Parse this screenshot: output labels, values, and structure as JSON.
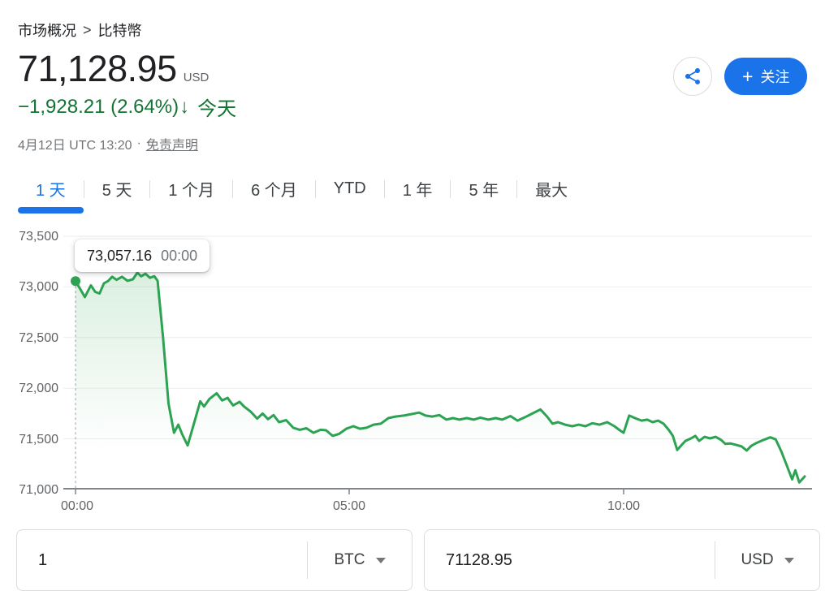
{
  "breadcrumb": {
    "root": "市场概况",
    "separator": ">",
    "current": "比特幣"
  },
  "quote": {
    "price": "71,128.95",
    "currency": "USD",
    "change": "−1,928.21 (2.64%)",
    "arrow": "↓",
    "period": "今天",
    "timestamp": "4月12日 UTC 13:20",
    "dot": "·",
    "disclaimer": "免责声明"
  },
  "actions": {
    "follow_plus": "+",
    "follow_label": "关注"
  },
  "tabs": [
    {
      "id": "1d",
      "label": "1 天",
      "active": true
    },
    {
      "id": "5d",
      "label": "5 天",
      "active": false
    },
    {
      "id": "1m",
      "label": "1 个月",
      "active": false
    },
    {
      "id": "6m",
      "label": "6 个月",
      "active": false
    },
    {
      "id": "ytd",
      "label": "YTD",
      "active": false
    },
    {
      "id": "1y",
      "label": "1 年",
      "active": false
    },
    {
      "id": "5y",
      "label": "5 年",
      "active": false
    },
    {
      "id": "max",
      "label": "最大",
      "active": false
    }
  ],
  "colors": {
    "accent": "#1a73e8",
    "change_green": "#137333",
    "chart_line": "#2ca352",
    "chart_fill": "#34a853",
    "grid": "#ecedee",
    "axis": "#80868b",
    "border": "#dadce0"
  },
  "chart_data": {
    "type": "line",
    "x_unit": "time (UTC, hours)",
    "x_ticks": [
      "00:00",
      "05:00",
      "10:00"
    ],
    "x_tick_hours": [
      0,
      5,
      10
    ],
    "y_ticks": [
      "73,500",
      "73,000",
      "72,500",
      "72,000",
      "71,500",
      "71,000"
    ],
    "ylim": [
      71000,
      73500
    ],
    "xlim_hours": [
      0,
      13.33
    ],
    "grid": true,
    "legend": "none",
    "tooltip": {
      "value": "73,057.16",
      "time": "00:00"
    },
    "series": [
      {
        "name": "BTC / USD",
        "points": [
          [
            0.0,
            73057
          ],
          [
            0.08,
            72985
          ],
          [
            0.17,
            72900
          ],
          [
            0.28,
            73015
          ],
          [
            0.36,
            72950
          ],
          [
            0.44,
            72935
          ],
          [
            0.52,
            73035
          ],
          [
            0.6,
            73060
          ],
          [
            0.67,
            73100
          ],
          [
            0.75,
            73070
          ],
          [
            0.85,
            73100
          ],
          [
            0.95,
            73060
          ],
          [
            1.05,
            73075
          ],
          [
            1.13,
            73140
          ],
          [
            1.2,
            73105
          ],
          [
            1.28,
            73130
          ],
          [
            1.36,
            73090
          ],
          [
            1.44,
            73105
          ],
          [
            1.5,
            73060
          ],
          [
            1.6,
            72500
          ],
          [
            1.7,
            71850
          ],
          [
            1.8,
            71560
          ],
          [
            1.88,
            71640
          ],
          [
            1.95,
            71545
          ],
          [
            2.05,
            71435
          ],
          [
            2.18,
            71680
          ],
          [
            2.28,
            71870
          ],
          [
            2.35,
            71820
          ],
          [
            2.45,
            71895
          ],
          [
            2.58,
            71950
          ],
          [
            2.68,
            71880
          ],
          [
            2.78,
            71905
          ],
          [
            2.88,
            71830
          ],
          [
            3.0,
            71865
          ],
          [
            3.08,
            71820
          ],
          [
            3.2,
            71770
          ],
          [
            3.32,
            71700
          ],
          [
            3.42,
            71750
          ],
          [
            3.52,
            71695
          ],
          [
            3.62,
            71735
          ],
          [
            3.72,
            71665
          ],
          [
            3.85,
            71685
          ],
          [
            3.98,
            71610
          ],
          [
            4.1,
            71590
          ],
          [
            4.22,
            71605
          ],
          [
            4.35,
            71560
          ],
          [
            4.48,
            71590
          ],
          [
            4.58,
            71585
          ],
          [
            4.7,
            71530
          ],
          [
            4.82,
            71550
          ],
          [
            4.95,
            71600
          ],
          [
            5.08,
            71625
          ],
          [
            5.2,
            71600
          ],
          [
            5.32,
            71610
          ],
          [
            5.45,
            71640
          ],
          [
            5.58,
            71650
          ],
          [
            5.72,
            71705
          ],
          [
            5.85,
            71720
          ],
          [
            6.0,
            71730
          ],
          [
            6.15,
            71745
          ],
          [
            6.28,
            71760
          ],
          [
            6.4,
            71730
          ],
          [
            6.52,
            71720
          ],
          [
            6.65,
            71735
          ],
          [
            6.78,
            71690
          ],
          [
            6.9,
            71705
          ],
          [
            7.02,
            71690
          ],
          [
            7.15,
            71705
          ],
          [
            7.28,
            71690
          ],
          [
            7.4,
            71710
          ],
          [
            7.55,
            71690
          ],
          [
            7.68,
            71705
          ],
          [
            7.8,
            71690
          ],
          [
            7.95,
            71725
          ],
          [
            8.08,
            71680
          ],
          [
            8.22,
            71715
          ],
          [
            8.35,
            71750
          ],
          [
            8.5,
            71790
          ],
          [
            8.62,
            71720
          ],
          [
            8.72,
            71650
          ],
          [
            8.82,
            71665
          ],
          [
            8.95,
            71640
          ],
          [
            9.08,
            71625
          ],
          [
            9.2,
            71640
          ],
          [
            9.32,
            71625
          ],
          [
            9.45,
            71655
          ],
          [
            9.58,
            71640
          ],
          [
            9.72,
            71665
          ],
          [
            9.85,
            71625
          ],
          [
            9.95,
            71585
          ],
          [
            10.02,
            71560
          ],
          [
            10.12,
            71730
          ],
          [
            10.25,
            71700
          ],
          [
            10.35,
            71680
          ],
          [
            10.45,
            71690
          ],
          [
            10.55,
            71665
          ],
          [
            10.65,
            71680
          ],
          [
            10.75,
            71650
          ],
          [
            10.85,
            71585
          ],
          [
            10.92,
            71530
          ],
          [
            11.0,
            71390
          ],
          [
            11.08,
            71440
          ],
          [
            11.15,
            71480
          ],
          [
            11.25,
            71505
          ],
          [
            11.33,
            71530
          ],
          [
            11.4,
            71480
          ],
          [
            11.5,
            71520
          ],
          [
            11.6,
            71505
          ],
          [
            11.7,
            71520
          ],
          [
            11.8,
            71490
          ],
          [
            11.88,
            71450
          ],
          [
            11.97,
            71455
          ],
          [
            12.08,
            71440
          ],
          [
            12.18,
            71425
          ],
          [
            12.27,
            71385
          ],
          [
            12.35,
            71430
          ],
          [
            12.45,
            71460
          ],
          [
            12.58,
            71490
          ],
          [
            12.7,
            71515
          ],
          [
            12.8,
            71495
          ],
          [
            12.9,
            71380
          ],
          [
            13.0,
            71240
          ],
          [
            13.1,
            71100
          ],
          [
            13.16,
            71190
          ],
          [
            13.23,
            71070
          ],
          [
            13.33,
            71129
          ]
        ]
      }
    ]
  },
  "converter": {
    "from": {
      "amount": "1",
      "unit": "BTC"
    },
    "to": {
      "amount": "71128.95",
      "unit": "USD"
    }
  }
}
